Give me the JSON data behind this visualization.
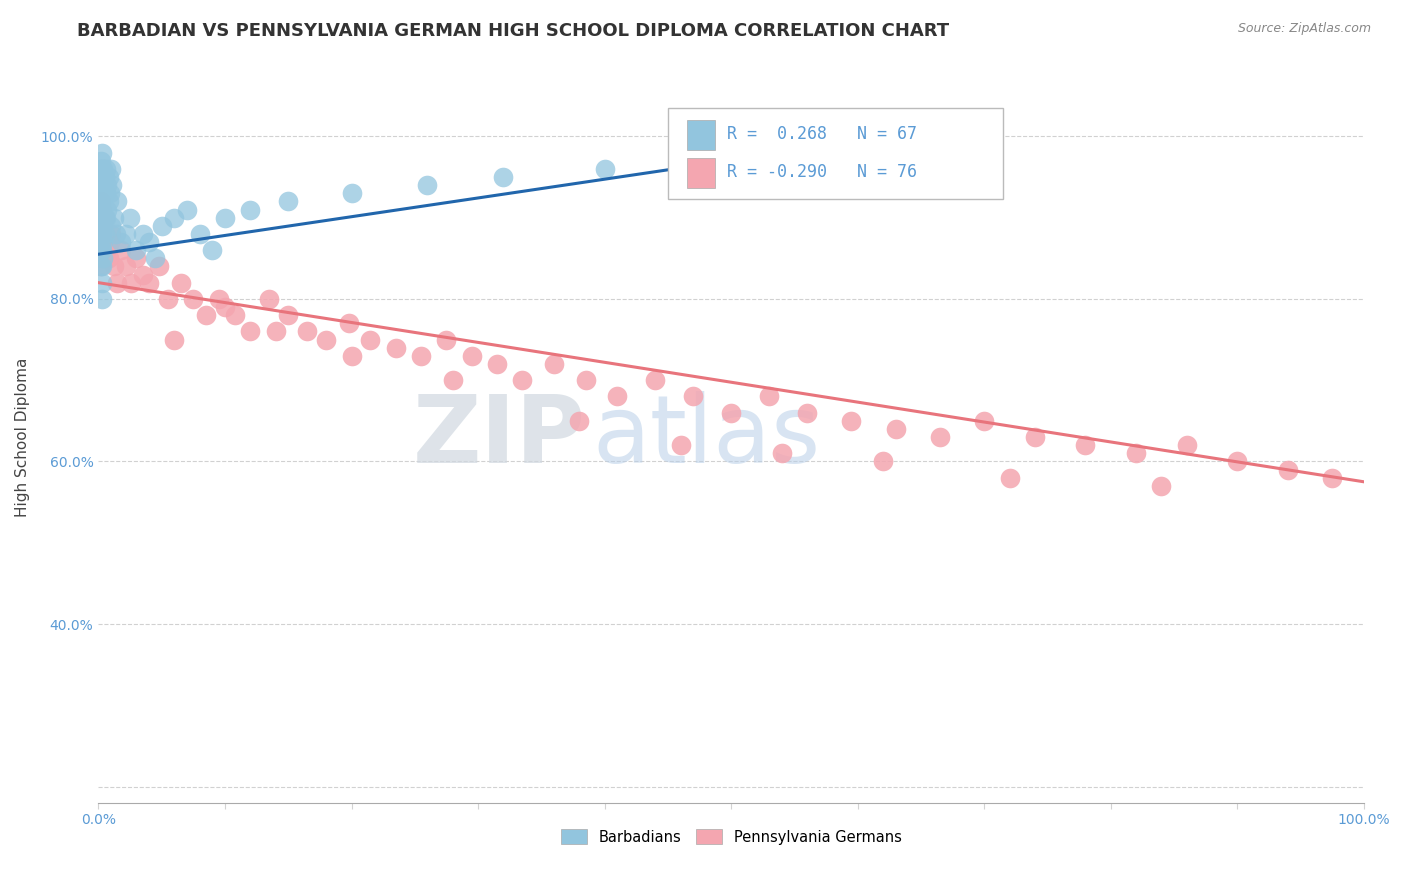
{
  "title": "BARBADIAN VS PENNSYLVANIA GERMAN HIGH SCHOOL DIPLOMA CORRELATION CHART",
  "source": "Source: ZipAtlas.com",
  "ylabel": "High School Diploma",
  "xlim": [
    0.0,
    1.0
  ],
  "ylim": [
    0.18,
    1.08
  ],
  "barbadian_color": "#92c5de",
  "barbadian_edge": "#6baed6",
  "pennsylvania_color": "#f4a6b0",
  "pennsylvania_edge": "#e87d8a",
  "barbadian_line_color": "#2166ac",
  "pennsylvania_line_color": "#e8747c",
  "barbadian_R": 0.268,
  "barbadian_N": 67,
  "pennsylvania_R": -0.29,
  "pennsylvania_N": 76,
  "legend_label_1": "Barbadians",
  "legend_label_2": "Pennsylvania Germans",
  "title_fontsize": 13,
  "label_fontsize": 11,
  "tick_fontsize": 10,
  "tick_color": "#5b9bd5",
  "barbadian_x": [
    0.001,
    0.001,
    0.001,
    0.001,
    0.001,
    0.002,
    0.002,
    0.002,
    0.002,
    0.002,
    0.002,
    0.002,
    0.002,
    0.003,
    0.003,
    0.003,
    0.003,
    0.003,
    0.003,
    0.003,
    0.003,
    0.003,
    0.003,
    0.004,
    0.004,
    0.004,
    0.004,
    0.004,
    0.004,
    0.005,
    0.005,
    0.005,
    0.005,
    0.006,
    0.006,
    0.006,
    0.007,
    0.007,
    0.008,
    0.008,
    0.009,
    0.01,
    0.01,
    0.011,
    0.012,
    0.014,
    0.015,
    0.018,
    0.022,
    0.025,
    0.03,
    0.035,
    0.04,
    0.045,
    0.05,
    0.06,
    0.07,
    0.08,
    0.09,
    0.1,
    0.12,
    0.15,
    0.2,
    0.26,
    0.32,
    0.4,
    0.48
  ],
  "barbadian_y": [
    0.96,
    0.94,
    0.92,
    0.9,
    0.88,
    0.97,
    0.95,
    0.93,
    0.91,
    0.89,
    0.87,
    0.86,
    0.84,
    0.98,
    0.96,
    0.94,
    0.92,
    0.9,
    0.88,
    0.86,
    0.84,
    0.82,
    0.8,
    0.96,
    0.94,
    0.91,
    0.89,
    0.87,
    0.85,
    0.95,
    0.93,
    0.9,
    0.88,
    0.96,
    0.93,
    0.9,
    0.94,
    0.91,
    0.95,
    0.92,
    0.93,
    0.96,
    0.89,
    0.94,
    0.9,
    0.88,
    0.92,
    0.87,
    0.88,
    0.9,
    0.86,
    0.88,
    0.87,
    0.85,
    0.89,
    0.9,
    0.91,
    0.88,
    0.86,
    0.9,
    0.91,
    0.92,
    0.93,
    0.94,
    0.95,
    0.96,
    0.97
  ],
  "pennsylvania_x": [
    0.001,
    0.001,
    0.001,
    0.002,
    0.002,
    0.002,
    0.003,
    0.003,
    0.003,
    0.004,
    0.004,
    0.005,
    0.005,
    0.006,
    0.007,
    0.008,
    0.009,
    0.01,
    0.012,
    0.015,
    0.018,
    0.022,
    0.026,
    0.03,
    0.035,
    0.04,
    0.048,
    0.055,
    0.065,
    0.075,
    0.085,
    0.095,
    0.108,
    0.12,
    0.135,
    0.15,
    0.165,
    0.18,
    0.198,
    0.215,
    0.235,
    0.255,
    0.275,
    0.295,
    0.315,
    0.335,
    0.36,
    0.385,
    0.41,
    0.44,
    0.47,
    0.5,
    0.53,
    0.56,
    0.595,
    0.63,
    0.665,
    0.7,
    0.74,
    0.78,
    0.82,
    0.86,
    0.9,
    0.94,
    0.975,
    0.06,
    0.1,
    0.14,
    0.2,
    0.28,
    0.38,
    0.46,
    0.54,
    0.62,
    0.72,
    0.84
  ],
  "pennsylvania_y": [
    0.9,
    0.87,
    0.84,
    0.92,
    0.88,
    0.85,
    0.91,
    0.88,
    0.85,
    0.89,
    0.86,
    0.9,
    0.87,
    0.88,
    0.86,
    0.85,
    0.87,
    0.88,
    0.84,
    0.82,
    0.86,
    0.84,
    0.82,
    0.85,
    0.83,
    0.82,
    0.84,
    0.8,
    0.82,
    0.8,
    0.78,
    0.8,
    0.78,
    0.76,
    0.8,
    0.78,
    0.76,
    0.75,
    0.77,
    0.75,
    0.74,
    0.73,
    0.75,
    0.73,
    0.72,
    0.7,
    0.72,
    0.7,
    0.68,
    0.7,
    0.68,
    0.66,
    0.68,
    0.66,
    0.65,
    0.64,
    0.63,
    0.65,
    0.63,
    0.62,
    0.61,
    0.62,
    0.6,
    0.59,
    0.58,
    0.75,
    0.79,
    0.76,
    0.73,
    0.7,
    0.65,
    0.62,
    0.61,
    0.6,
    0.58,
    0.57
  ],
  "barb_line_x0": 0.0,
  "barb_line_x1": 0.52,
  "barb_line_y0": 0.855,
  "barb_line_y1": 0.975,
  "penn_line_x0": 0.0,
  "penn_line_x1": 1.0,
  "penn_line_y0": 0.82,
  "penn_line_y1": 0.575
}
